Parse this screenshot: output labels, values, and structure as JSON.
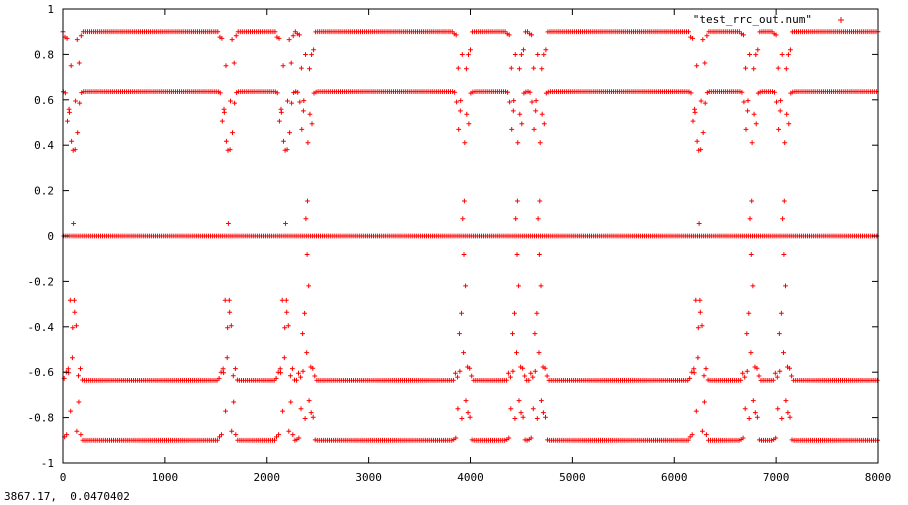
{
  "chart_data": {
    "type": "scatter",
    "marker": "+",
    "color": "#ff0000",
    "xlim": [
      0,
      8000
    ],
    "ylim": [
      -1,
      1
    ],
    "xticks": [
      0,
      1000,
      2000,
      3000,
      4000,
      5000,
      6000,
      7000,
      8000
    ],
    "yticks": [
      1,
      0.8,
      0.6,
      0.4,
      0.2,
      0,
      -0.2,
      -0.4,
      -0.6,
      -0.8,
      -1
    ],
    "xtick_labels": [
      "0",
      "1000",
      "2000",
      "3000",
      "4000",
      "5000",
      "6000",
      "7000",
      "8000"
    ],
    "ytick_labels": [
      "1",
      "0.8",
      "0.6",
      "0.4",
      "0.2",
      "0",
      "-0.2",
      "-0.4",
      "-0.6",
      "-0.8",
      "-1"
    ],
    "grid": false,
    "legend_position": "top-right",
    "series": [
      {
        "name": "\"test_rrc_out.num\"",
        "levels": [
          0.9,
          0.636,
          0,
          -0.636,
          -0.9
        ],
        "sample_step": 4,
        "transition_centers": [
          100,
          1620,
          2180,
          2390,
          3930,
          4450,
          4670,
          6240,
          6750,
          7070
        ],
        "transition_halfwidth": 100
      }
    ],
    "title": "",
    "xlabel": "",
    "ylabel": ""
  },
  "status_bar": {
    "coordinates": "3867.17,  0.0470402"
  }
}
